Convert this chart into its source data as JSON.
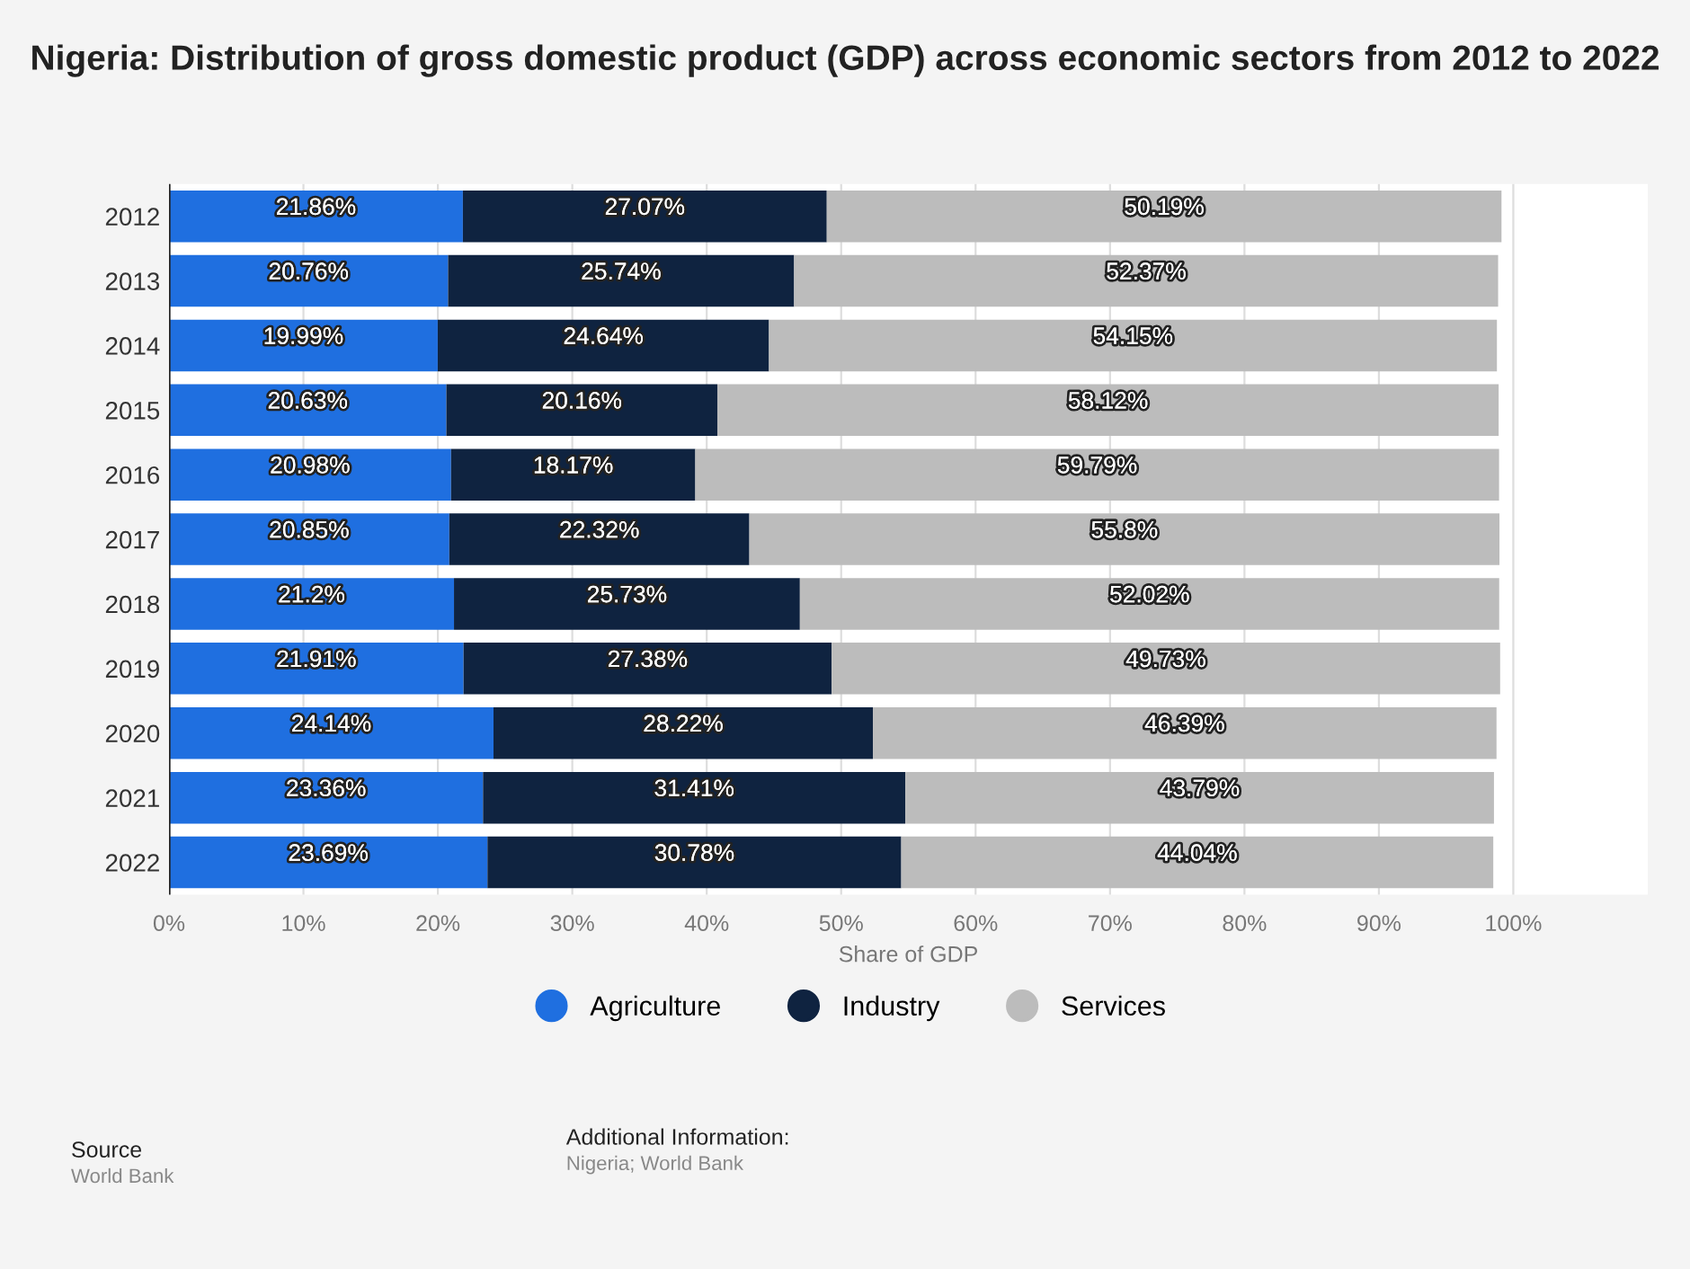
{
  "chart_data": {
    "type": "bar",
    "orientation": "horizontal",
    "stacked": true,
    "title": "Nigeria: Distribution of gross domestic product (GDP) across economic sectors from 2012 to 2022",
    "xlabel": "Share of GDP",
    "categories": [
      "2012",
      "2013",
      "2014",
      "2015",
      "2016",
      "2017",
      "2018",
      "2019",
      "2020",
      "2021",
      "2022"
    ],
    "series": [
      {
        "name": "Agriculture",
        "color": "#1f6fe0",
        "values": [
          21.86,
          20.76,
          19.99,
          20.63,
          20.98,
          20.85,
          21.2,
          21.91,
          24.14,
          23.36,
          23.69
        ],
        "value_labels": [
          "21.86%",
          "20.76%",
          "19.99%",
          "20.63%",
          "20.98%",
          "20.85%",
          "21.2%",
          "21.91%",
          "24.14%",
          "23.36%",
          "23.69%"
        ]
      },
      {
        "name": "Industry",
        "color": "#0f2340",
        "values": [
          27.07,
          25.74,
          24.64,
          20.16,
          18.17,
          22.32,
          25.73,
          27.38,
          28.22,
          31.41,
          30.78
        ],
        "value_labels": [
          "27.07%",
          "25.74%",
          "24.64%",
          "20.16%",
          "18.17%",
          "22.32%",
          "25.73%",
          "27.38%",
          "28.22%",
          "31.41%",
          "30.78%"
        ]
      },
      {
        "name": "Services",
        "color": "#bcbcbc",
        "values": [
          50.19,
          52.37,
          54.15,
          58.12,
          59.79,
          55.8,
          52.02,
          49.73,
          46.39,
          43.79,
          44.04
        ],
        "value_labels": [
          "50.19%",
          "52.37%",
          "54.15%",
          "58.12%",
          "59.79%",
          "55.8%",
          "52.02%",
          "49.73%",
          "46.39%",
          "43.79%",
          "44.04%"
        ]
      }
    ],
    "xlim": [
      0,
      110
    ],
    "xticks": [
      {
        "value": 0,
        "label": "0%"
      },
      {
        "value": 10,
        "label": "10%"
      },
      {
        "value": 20,
        "label": "20%"
      },
      {
        "value": 30,
        "label": "30%"
      },
      {
        "value": 40,
        "label": "40%"
      },
      {
        "value": 50,
        "label": "50%"
      },
      {
        "value": 60,
        "label": "60%"
      },
      {
        "value": 70,
        "label": "70%"
      },
      {
        "value": 80,
        "label": "80%"
      },
      {
        "value": 90,
        "label": "90%"
      },
      {
        "value": 100,
        "label": "100%"
      }
    ],
    "grid": "x",
    "legend": "bottom",
    "annotations": [
      "Source",
      "World Bank",
      "Additional Information:",
      "Nigeria; World Bank"
    ]
  }
}
